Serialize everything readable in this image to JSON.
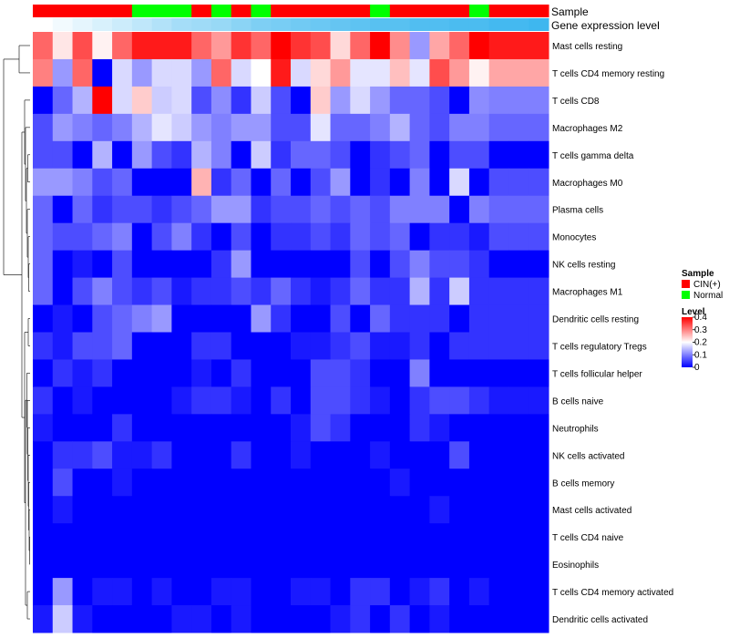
{
  "chart_data": {
    "type": "heatmap",
    "annotation_labels": [
      "Sample",
      "Gene expression level"
    ],
    "sample_annotation": [
      "CIN(+)",
      "CIN(+)",
      "CIN(+)",
      "CIN(+)",
      "CIN(+)",
      "Normal",
      "Normal",
      "Normal",
      "CIN(+)",
      "Normal",
      "CIN(+)",
      "Normal",
      "CIN(+)",
      "CIN(+)",
      "CIN(+)",
      "CIN(+)",
      "CIN(+)",
      "Normal",
      "CIN(+)",
      "CIN(+)",
      "CIN(+)",
      "CIN(+)",
      "Normal",
      "CIN(+)",
      "CIN(+)",
      "CIN(+)"
    ],
    "expression_annotation": [
      0.1,
      0.12,
      0.14,
      0.16,
      0.18,
      0.2,
      0.22,
      0.24,
      0.25,
      0.26,
      0.28,
      0.3,
      0.31,
      0.32,
      0.33,
      0.34,
      0.35,
      0.36,
      0.36,
      0.37,
      0.37,
      0.38,
      0.38,
      0.39,
      0.39,
      0.4
    ],
    "rows": [
      "Mast cells resting",
      "T cells CD4 memory resting",
      "T cells CD8",
      "Macrophages M2",
      "T cells gamma delta",
      "Macrophages M0",
      "Plasma cells",
      "Monocytes",
      "NK cells resting",
      "Macrophages M1",
      "Dendritic cells resting",
      "T cells regulatory  Tregs",
      "T cells follicular helper",
      "B cells naive",
      "Neutrophils",
      "NK cells activated",
      "B cells memory",
      "Mast cells activated",
      "T cells CD4 naive",
      "Eosinophils",
      "T cells CD4 memory activated",
      "Dendritic cells activated"
    ],
    "values": [
      [
        0.32,
        0.22,
        0.34,
        0.21,
        0.32,
        0.38,
        0.38,
        0.38,
        0.32,
        0.28,
        0.36,
        0.32,
        0.4,
        0.36,
        0.34,
        0.23,
        0.32,
        0.4,
        0.29,
        0.12,
        0.27,
        0.32,
        0.4,
        0.38,
        0.38,
        0.38
      ],
      [
        0.3,
        0.12,
        0.32,
        0.0,
        0.17,
        0.12,
        0.17,
        0.17,
        0.12,
        0.32,
        0.17,
        0.2,
        0.38,
        0.17,
        0.23,
        0.28,
        0.18,
        0.18,
        0.25,
        0.18,
        0.34,
        0.28,
        0.21,
        0.27,
        0.27,
        0.27
      ],
      [
        0.0,
        0.08,
        0.14,
        0.4,
        0.17,
        0.24,
        0.16,
        0.17,
        0.06,
        0.11,
        0.04,
        0.16,
        0.06,
        0.0,
        0.24,
        0.12,
        0.17,
        0.12,
        0.08,
        0.08,
        0.06,
        0.0,
        0.11,
        0.1,
        0.1,
        0.1
      ],
      [
        0.06,
        0.12,
        0.1,
        0.08,
        0.1,
        0.14,
        0.18,
        0.16,
        0.12,
        0.1,
        0.12,
        0.12,
        0.06,
        0.06,
        0.18,
        0.08,
        0.08,
        0.1,
        0.14,
        0.08,
        0.06,
        0.1,
        0.1,
        0.08,
        0.08,
        0.08
      ],
      [
        0.06,
        0.06,
        0.0,
        0.14,
        0.0,
        0.12,
        0.06,
        0.04,
        0.14,
        0.1,
        0.0,
        0.16,
        0.04,
        0.08,
        0.08,
        0.06,
        0.0,
        0.04,
        0.06,
        0.08,
        0.0,
        0.06,
        0.06,
        0.0,
        0.0,
        0.0
      ],
      [
        0.12,
        0.12,
        0.1,
        0.06,
        0.08,
        0.0,
        0.0,
        0.0,
        0.26,
        0.04,
        0.08,
        0.0,
        0.08,
        0.0,
        0.06,
        0.12,
        0.0,
        0.04,
        0.0,
        0.1,
        0.0,
        0.17,
        0.0,
        0.06,
        0.06,
        0.06
      ],
      [
        0.08,
        0.0,
        0.08,
        0.04,
        0.06,
        0.06,
        0.04,
        0.06,
        0.08,
        0.12,
        0.12,
        0.04,
        0.06,
        0.06,
        0.08,
        0.06,
        0.08,
        0.06,
        0.1,
        0.1,
        0.1,
        0.0,
        0.1,
        0.08,
        0.08,
        0.08
      ],
      [
        0.08,
        0.06,
        0.06,
        0.08,
        0.1,
        0.0,
        0.06,
        0.1,
        0.04,
        0.0,
        0.06,
        0.0,
        0.04,
        0.04,
        0.06,
        0.04,
        0.08,
        0.06,
        0.08,
        0.0,
        0.04,
        0.04,
        0.02,
        0.06,
        0.06,
        0.06
      ],
      [
        0.08,
        0.0,
        0.02,
        0.0,
        0.06,
        0.0,
        0.0,
        0.0,
        0.0,
        0.04,
        0.12,
        0.0,
        0.0,
        0.0,
        0.0,
        0.0,
        0.06,
        0.0,
        0.06,
        0.1,
        0.06,
        0.06,
        0.04,
        0.0,
        0.0,
        0.0
      ],
      [
        0.08,
        0.0,
        0.06,
        0.1,
        0.06,
        0.04,
        0.06,
        0.02,
        0.04,
        0.04,
        0.06,
        0.04,
        0.08,
        0.04,
        0.02,
        0.04,
        0.08,
        0.04,
        0.04,
        0.14,
        0.04,
        0.16,
        0.04,
        0.04,
        0.04,
        0.04
      ],
      [
        0.0,
        0.02,
        0.0,
        0.06,
        0.08,
        0.1,
        0.12,
        0.0,
        0.0,
        0.0,
        0.0,
        0.12,
        0.04,
        0.0,
        0.0,
        0.06,
        0.0,
        0.08,
        0.04,
        0.04,
        0.04,
        0.0,
        0.04,
        0.04,
        0.04,
        0.04
      ],
      [
        0.04,
        0.02,
        0.06,
        0.06,
        0.08,
        0.0,
        0.0,
        0.0,
        0.04,
        0.04,
        0.0,
        0.0,
        0.0,
        0.02,
        0.02,
        0.04,
        0.06,
        0.02,
        0.02,
        0.04,
        0.0,
        0.04,
        0.04,
        0.04,
        0.04,
        0.04
      ],
      [
        0.0,
        0.04,
        0.02,
        0.04,
        0.0,
        0.0,
        0.0,
        0.0,
        0.02,
        0.0,
        0.04,
        0.0,
        0.0,
        0.0,
        0.06,
        0.06,
        0.04,
        0.0,
        0.0,
        0.1,
        0.0,
        0.0,
        0.0,
        0.0,
        0.0,
        0.0
      ],
      [
        0.04,
        0.0,
        0.02,
        0.0,
        0.0,
        0.0,
        0.0,
        0.02,
        0.04,
        0.04,
        0.02,
        0.0,
        0.04,
        0.0,
        0.06,
        0.06,
        0.04,
        0.02,
        0.0,
        0.04,
        0.06,
        0.06,
        0.04,
        0.02,
        0.02,
        0.02
      ],
      [
        0.02,
        0.0,
        0.0,
        0.0,
        0.04,
        0.0,
        0.0,
        0.0,
        0.0,
        0.0,
        0.0,
        0.0,
        0.0,
        0.02,
        0.06,
        0.04,
        0.0,
        0.0,
        0.0,
        0.04,
        0.02,
        0.0,
        0.0,
        0.0,
        0.0,
        0.0
      ],
      [
        0.0,
        0.04,
        0.04,
        0.06,
        0.02,
        0.02,
        0.04,
        0.0,
        0.0,
        0.0,
        0.04,
        0.0,
        0.0,
        0.02,
        0.0,
        0.0,
        0.0,
        0.02,
        0.0,
        0.0,
        0.0,
        0.06,
        0.0,
        0.0,
        0.0,
        0.0
      ],
      [
        0.0,
        0.06,
        0.0,
        0.0,
        0.02,
        0.0,
        0.0,
        0.0,
        0.0,
        0.0,
        0.0,
        0.0,
        0.0,
        0.0,
        0.0,
        0.0,
        0.0,
        0.0,
        0.02,
        0.0,
        0.0,
        0.0,
        0.0,
        0.0,
        0.0,
        0.0
      ],
      [
        0.0,
        0.02,
        0.0,
        0.0,
        0.0,
        0.0,
        0.0,
        0.0,
        0.0,
        0.0,
        0.0,
        0.0,
        0.0,
        0.0,
        0.0,
        0.0,
        0.0,
        0.0,
        0.0,
        0.0,
        0.02,
        0.0,
        0.0,
        0.0,
        0.0,
        0.0
      ],
      [
        0.0,
        0.0,
        0.0,
        0.0,
        0.0,
        0.0,
        0.0,
        0.0,
        0.0,
        0.0,
        0.0,
        0.0,
        0.0,
        0.0,
        0.0,
        0.0,
        0.0,
        0.0,
        0.0,
        0.0,
        0.0,
        0.0,
        0.0,
        0.0,
        0.0,
        0.0
      ],
      [
        0.0,
        0.0,
        0.0,
        0.0,
        0.0,
        0.0,
        0.0,
        0.0,
        0.0,
        0.0,
        0.0,
        0.0,
        0.0,
        0.0,
        0.0,
        0.0,
        0.0,
        0.0,
        0.0,
        0.0,
        0.0,
        0.0,
        0.0,
        0.0,
        0.0,
        0.0
      ],
      [
        0.0,
        0.12,
        0.0,
        0.02,
        0.02,
        0.0,
        0.02,
        0.0,
        0.0,
        0.02,
        0.02,
        0.0,
        0.0,
        0.02,
        0.02,
        0.0,
        0.04,
        0.04,
        0.0,
        0.02,
        0.04,
        0.0,
        0.02,
        0.0,
        0.0,
        0.0
      ],
      [
        0.02,
        0.16,
        0.02,
        0.0,
        0.0,
        0.0,
        0.0,
        0.02,
        0.02,
        0.0,
        0.02,
        0.0,
        0.0,
        0.0,
        0.0,
        0.02,
        0.04,
        0.0,
        0.04,
        0.0,
        0.02,
        0.0,
        0.0,
        0.0,
        0.0,
        0.0
      ]
    ],
    "color_scale": {
      "low": "#0000ff",
      "mid": "#ffffff",
      "high": "#ff0000",
      "range": [
        0,
        0.4
      ]
    },
    "annotation_scale": {
      "low": "#ffffff",
      "high": "#3eb7ef",
      "range": [
        0.1,
        0.4
      ]
    },
    "legend": {
      "sample": {
        "title": "Sample",
        "entries": [
          {
            "label": "CIN(+)",
            "color": "#ff0000"
          },
          {
            "label": "Normal",
            "color": "#00ff00"
          }
        ]
      },
      "level": {
        "title": "Level",
        "ticks": [
          0.4,
          0.3,
          0.2,
          0.1,
          0
        ],
        "tick_labels": [
          "0.4",
          "0.3",
          "0.2",
          "0.1",
          "0"
        ]
      }
    },
    "row_dendrogram": true
  }
}
